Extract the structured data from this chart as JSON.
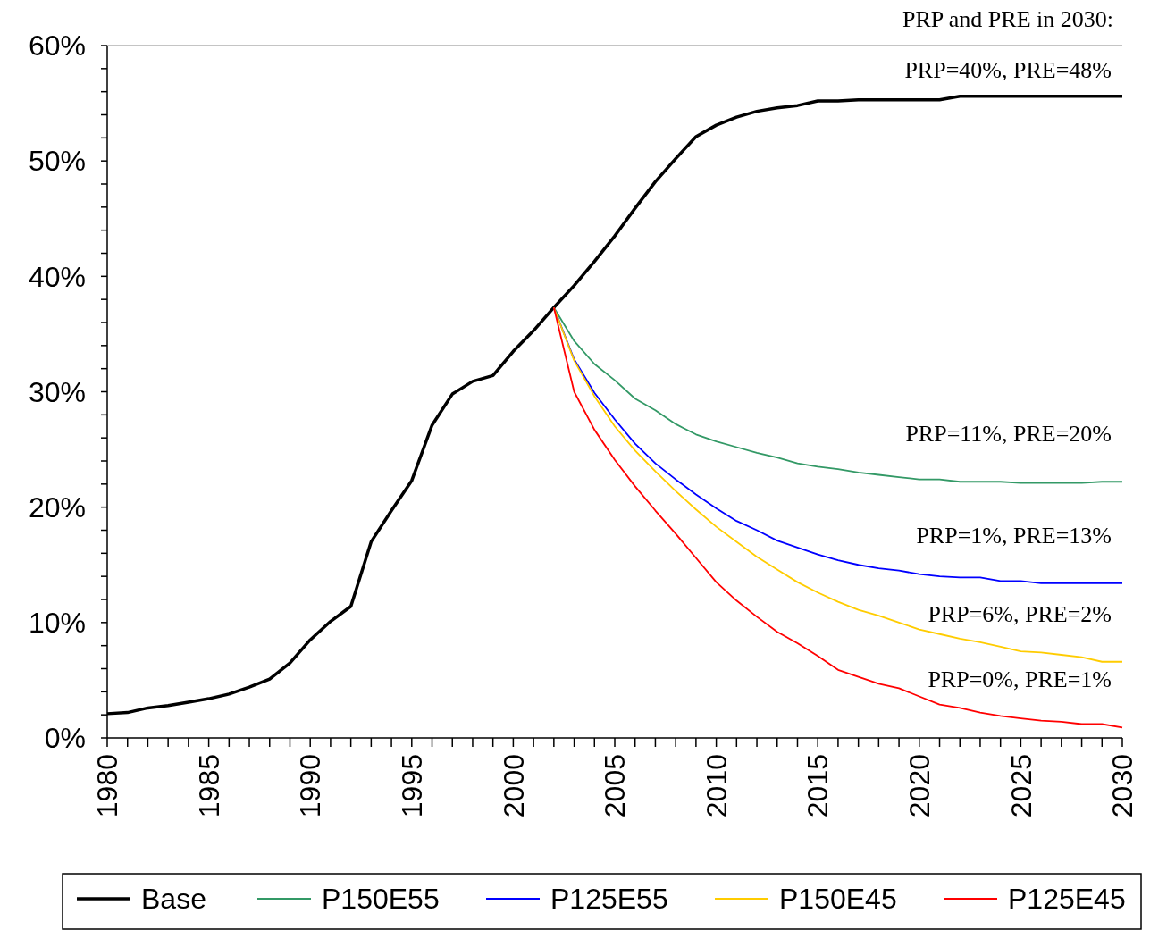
{
  "chart_data": {
    "type": "line",
    "legend": "bottom",
    "grid": false,
    "marker": "none",
    "line_style": "solid",
    "x": [
      1980,
      1981,
      1982,
      1983,
      1984,
      1985,
      1986,
      1987,
      1988,
      1989,
      1990,
      1991,
      1992,
      1993,
      1994,
      1995,
      1996,
      1997,
      1998,
      1999,
      2000,
      2001,
      2002,
      2003,
      2004,
      2005,
      2006,
      2007,
      2008,
      2009,
      2010,
      2011,
      2012,
      2013,
      2014,
      2015,
      2016,
      2017,
      2018,
      2019,
      2020,
      2021,
      2022,
      2023,
      2024,
      2025,
      2026,
      2027,
      2028,
      2029,
      2030
    ],
    "xlim": [
      1980,
      2030
    ],
    "xticks": [
      1980,
      {
        "value": 1981,
        "label": null
      },
      {
        "value": 1982,
        "label": null
      },
      {
        "value": 1983,
        "label": null
      },
      {
        "value": 1984,
        "label": null
      },
      1985,
      {
        "value": 1986,
        "label": null
      },
      {
        "value": 1987,
        "label": null
      },
      {
        "value": 1988,
        "label": null
      },
      {
        "value": 1989,
        "label": null
      },
      1990,
      {
        "value": 1991,
        "label": null
      },
      {
        "value": 1992,
        "label": null
      },
      {
        "value": 1993,
        "label": null
      },
      {
        "value": 1994,
        "label": null
      },
      1995,
      {
        "value": 1996,
        "label": null
      },
      {
        "value": 1997,
        "label": null
      },
      {
        "value": 1998,
        "label": null
      },
      {
        "value": 1999,
        "label": null
      },
      2000,
      {
        "value": 2001,
        "label": null
      },
      {
        "value": 2002,
        "label": null
      },
      {
        "value": 2003,
        "label": null
      },
      {
        "value": 2004,
        "label": null
      },
      2005,
      {
        "value": 2006,
        "label": null
      },
      {
        "value": 2007,
        "label": null
      },
      {
        "value": 2008,
        "label": null
      },
      {
        "value": 2009,
        "label": null
      },
      2010,
      {
        "value": 2011,
        "label": null
      },
      {
        "value": 2012,
        "label": null
      },
      {
        "value": 2013,
        "label": null
      },
      {
        "value": 2014,
        "label": null
      },
      2015,
      {
        "value": 2016,
        "label": null
      },
      {
        "value": 2017,
        "label": null
      },
      {
        "value": 2018,
        "label": null
      },
      {
        "value": 2019,
        "label": null
      },
      2020,
      {
        "value": 2021,
        "label": null
      },
      {
        "value": 2022,
        "label": null
      },
      {
        "value": 2023,
        "label": null
      },
      {
        "value": 2024,
        "label": null
      },
      2025,
      {
        "value": 2026,
        "label": null
      },
      {
        "value": 2027,
        "label": null
      },
      {
        "value": 2028,
        "label": null
      },
      {
        "value": 2029,
        "label": null
      },
      2030
    ],
    "ylim": [
      0,
      60
    ],
    "yticks": [
      {
        "value": 0,
        "label": "0%"
      },
      {
        "value": 2,
        "label": null
      },
      {
        "value": 4,
        "label": null
      },
      {
        "value": 6,
        "label": null
      },
      {
        "value": 8,
        "label": null
      },
      {
        "value": 10,
        "label": "10%"
      },
      {
        "value": 12,
        "label": null
      },
      {
        "value": 14,
        "label": null
      },
      {
        "value": 16,
        "label": null
      },
      {
        "value": 18,
        "label": null
      },
      {
        "value": 20,
        "label": "20%"
      },
      {
        "value": 22,
        "label": null
      },
      {
        "value": 24,
        "label": null
      },
      {
        "value": 26,
        "label": null
      },
      {
        "value": 28,
        "label": null
      },
      {
        "value": 30,
        "label": "30%"
      },
      {
        "value": 32,
        "label": null
      },
      {
        "value": 34,
        "label": null
      },
      {
        "value": 36,
        "label": null
      },
      {
        "value": 38,
        "label": null
      },
      {
        "value": 40,
        "label": "40%"
      },
      {
        "value": 42,
        "label": null
      },
      {
        "value": 44,
        "label": null
      },
      {
        "value": 46,
        "label": null
      },
      {
        "value": 48,
        "label": null
      },
      {
        "value": 50,
        "label": "50%"
      },
      {
        "value": 52,
        "label": null
      },
      {
        "value": 54,
        "label": null
      },
      {
        "value": 56,
        "label": null
      },
      {
        "value": 58,
        "label": null
      },
      {
        "value": 60,
        "label": "60%"
      }
    ],
    "series": [
      {
        "name": "Base",
        "color": "#000000",
        "values": [
          2.1,
          2.2,
          2.6,
          2.8,
          3.1,
          3.4,
          3.8,
          4.4,
          5.1,
          6.5,
          8.5,
          10.1,
          11.4,
          17.0,
          19.7,
          22.3,
          27.1,
          29.8,
          30.9,
          31.4,
          33.5,
          35.3,
          37.3,
          39.2,
          41.3,
          43.5,
          45.9,
          48.2,
          50.2,
          52.1,
          53.1,
          53.8,
          54.3,
          54.6,
          54.8,
          55.2,
          55.2,
          55.3,
          55.3,
          55.3,
          55.3,
          55.3,
          55.6,
          55.6,
          55.6,
          55.6,
          55.6,
          55.6,
          55.6,
          55.6,
          55.6
        ]
      },
      {
        "name": "P150E55",
        "color": "#339966",
        "x": [
          2002,
          2003,
          2004,
          2005,
          2006,
          2007,
          2008,
          2009,
          2010,
          2011,
          2012,
          2013,
          2014,
          2015,
          2016,
          2017,
          2018,
          2019,
          2020,
          2021,
          2022,
          2023,
          2024,
          2025,
          2026,
          2027,
          2028,
          2029,
          2030
        ],
        "values": [
          37.3,
          34.4,
          32.4,
          31.0,
          29.4,
          28.4,
          27.2,
          26.3,
          25.7,
          25.2,
          24.7,
          24.3,
          23.8,
          23.5,
          23.3,
          23.0,
          22.8,
          22.6,
          22.4,
          22.4,
          22.2,
          22.2,
          22.2,
          22.1,
          22.1,
          22.1,
          22.1,
          22.2,
          22.2
        ]
      },
      {
        "name": "P125E55",
        "color": "#0000ff",
        "x": [
          2002,
          2003,
          2004,
          2005,
          2006,
          2007,
          2008,
          2009,
          2010,
          2011,
          2012,
          2013,
          2014,
          2015,
          2016,
          2017,
          2018,
          2019,
          2020,
          2021,
          2022,
          2023,
          2024,
          2025,
          2026,
          2027,
          2028,
          2029,
          2030
        ],
        "values": [
          37.3,
          32.8,
          29.9,
          27.6,
          25.5,
          23.8,
          22.4,
          21.1,
          19.9,
          18.8,
          18.0,
          17.1,
          16.5,
          15.9,
          15.4,
          15.0,
          14.7,
          14.5,
          14.2,
          14.0,
          13.9,
          13.9,
          13.6,
          13.6,
          13.4,
          13.4,
          13.4,
          13.4,
          13.4
        ]
      },
      {
        "name": "P150E45",
        "color": "#ffcc00",
        "x": [
          2002,
          2003,
          2004,
          2005,
          2006,
          2007,
          2008,
          2009,
          2010,
          2011,
          2012,
          2013,
          2014,
          2015,
          2016,
          2017,
          2018,
          2019,
          2020,
          2021,
          2022,
          2023,
          2024,
          2025,
          2026,
          2027,
          2028,
          2029,
          2030
        ],
        "values": [
          37.3,
          32.7,
          29.6,
          27.0,
          24.9,
          23.1,
          21.4,
          19.8,
          18.3,
          17.0,
          15.7,
          14.6,
          13.5,
          12.6,
          11.8,
          11.1,
          10.6,
          10.0,
          9.4,
          9.0,
          8.6,
          8.3,
          7.9,
          7.5,
          7.4,
          7.2,
          7.0,
          6.6,
          6.6
        ]
      },
      {
        "name": "P125E45",
        "color": "#ff0000",
        "x": [
          2002,
          2003,
          2004,
          2005,
          2006,
          2007,
          2008,
          2009,
          2010,
          2011,
          2012,
          2013,
          2014,
          2015,
          2016,
          2017,
          2018,
          2019,
          2020,
          2021,
          2022,
          2023,
          2024,
          2025,
          2026,
          2027,
          2028,
          2029,
          2030
        ],
        "values": [
          37.3,
          30.0,
          26.7,
          24.1,
          21.8,
          19.7,
          17.7,
          15.6,
          13.5,
          11.9,
          10.5,
          9.2,
          8.2,
          7.1,
          5.9,
          5.3,
          4.7,
          4.3,
          3.6,
          2.9,
          2.6,
          2.2,
          1.9,
          1.7,
          1.5,
          1.4,
          1.2,
          1.2,
          0.9
        ]
      }
    ],
    "annotations": [
      "PRP and PRE in 2030:",
      "PRP=40%, PRE=48%",
      "PRP=11%, PRE=20%",
      "PRP=1%, PRE=13%",
      "PRP=6%, PRE=2%",
      "PRP=0%, PRE=1%"
    ]
  }
}
